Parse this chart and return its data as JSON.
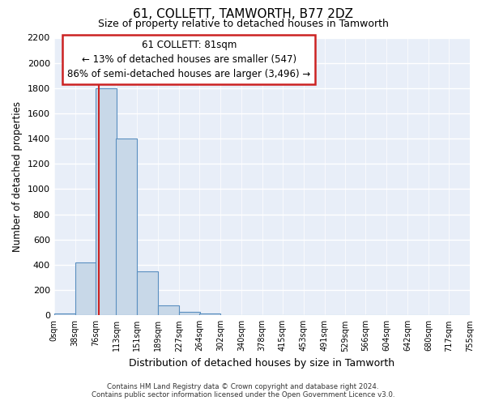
{
  "title1": "61, COLLETT, TAMWORTH, B77 2DZ",
  "title2": "Size of property relative to detached houses in Tamworth",
  "xlabel": "Distribution of detached houses by size in Tamworth",
  "ylabel": "Number of detached properties",
  "bin_edges": [
    0,
    38,
    76,
    113,
    151,
    189,
    227,
    264,
    302,
    340,
    378,
    415,
    453,
    491,
    529,
    566,
    604,
    642,
    680,
    717,
    755
  ],
  "bin_labels": [
    "0sqm",
    "38sqm",
    "76sqm",
    "113sqm",
    "151sqm",
    "189sqm",
    "227sqm",
    "264sqm",
    "302sqm",
    "340sqm",
    "378sqm",
    "415sqm",
    "453sqm",
    "491sqm",
    "529sqm",
    "566sqm",
    "604sqm",
    "642sqm",
    "680sqm",
    "717sqm",
    "755sqm"
  ],
  "bar_heights": [
    15,
    420,
    1800,
    1400,
    350,
    80,
    30,
    15,
    5,
    2,
    1,
    0,
    0,
    0,
    0,
    0,
    0,
    0,
    0,
    0
  ],
  "bar_facecolor": "#c8d8e8",
  "bar_edgecolor": "#5a8fc0",
  "property_size": 81,
  "annotation_line1": "61 COLLETT: 81sqm",
  "annotation_line2": "← 13% of detached houses are smaller (547)",
  "annotation_line3": "86% of semi-detached houses are larger (3,496) →",
  "vline_color": "#cc2222",
  "annotation_box_edgecolor": "#cc2222",
  "ylim": [
    0,
    2200
  ],
  "yticks": [
    0,
    200,
    400,
    600,
    800,
    1000,
    1200,
    1400,
    1600,
    1800,
    2000,
    2200
  ],
  "bg_color": "#e8eef8",
  "grid_color": "#ffffff",
  "footer1": "Contains HM Land Registry data © Crown copyright and database right 2024.",
  "footer2": "Contains public sector information licensed under the Open Government Licence v3.0."
}
